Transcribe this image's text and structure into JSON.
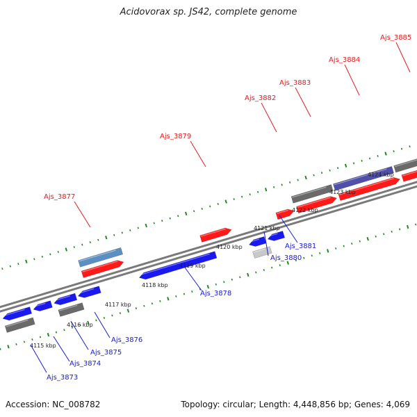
{
  "title": "Acidovorax sp. JS42, complete genome",
  "footer": {
    "accession": "Accession: NC_008782",
    "summary": "Topology: circular; Length: 4,448,856 bp; Genes: 4,069"
  },
  "colors": {
    "forward_label": "#e8191f",
    "reverse_label": "#1a1ad1",
    "tick": "#1c8a1c",
    "backbone": "#7a7a7a",
    "forward_gene": "#ff1a1a",
    "reverse_gene": "#1a1aee",
    "other_gene_dark": "#6a6a6a",
    "other_gene_blue": "#5b8fc2",
    "other_gene_purple": "#5050a8",
    "other_gene_light": "#c8c8c8"
  },
  "scale": {
    "unit": "kbp",
    "labels": [
      "4115 kbp",
      "4116 kbp",
      "4117 kbp",
      "4118 kbp",
      "4119 kbp",
      "4120 kbp",
      "4121 kbp",
      "4122 kbp",
      "4123 kbp",
      "4124 kbp"
    ]
  },
  "genes_top": [
    {
      "label": "Ajs_3877"
    },
    {
      "label": "Ajs_3879"
    },
    {
      "label": "Ajs_3882"
    },
    {
      "label": "Ajs_3883"
    },
    {
      "label": "Ajs_3884"
    },
    {
      "label": "Ajs_3885"
    }
  ],
  "genes_bottom": [
    {
      "label": "Ajs_3873"
    },
    {
      "label": "Ajs_3874"
    },
    {
      "label": "Ajs_3875"
    },
    {
      "label": "Ajs_3876"
    },
    {
      "label": "Ajs_3878"
    },
    {
      "label": "Ajs_3880"
    },
    {
      "label": "Ajs_3881"
    }
  ]
}
